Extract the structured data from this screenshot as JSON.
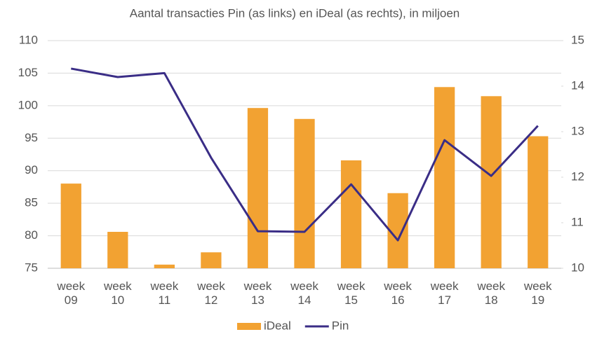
{
  "chart_data": {
    "type": "bar-line",
    "title": "Aantal transacties Pin (as links) en iDeal (as rechts), in miljoen",
    "categories": [
      "week 09",
      "week 10",
      "week 11",
      "week 12",
      "week 13",
      "week 14",
      "week 15",
      "week 16",
      "week 17",
      "week 18",
      "week 19"
    ],
    "series": [
      {
        "name": "iDeal",
        "type": "bar",
        "axis": "y2",
        "color": "#f2a232",
        "values": [
          11.86,
          10.8,
          10.08,
          10.35,
          13.52,
          13.28,
          12.37,
          11.65,
          13.98,
          13.78,
          12.9
        ]
      },
      {
        "name": "Pin",
        "type": "line",
        "axis": "y",
        "color": "#3a2d86",
        "values": [
          105.7,
          104.4,
          105.0,
          92.0,
          80.7,
          80.6,
          87.9,
          79.3,
          94.7,
          89.2,
          96.9
        ]
      }
    ],
    "ylim": [
      75,
      110
    ],
    "yticks": [
      75,
      80,
      85,
      90,
      95,
      100,
      105,
      110
    ],
    "y2lim": [
      10,
      15
    ],
    "y2ticks": [
      10,
      11,
      12,
      13,
      14,
      15
    ],
    "grid": true,
    "legend": "bottom"
  }
}
